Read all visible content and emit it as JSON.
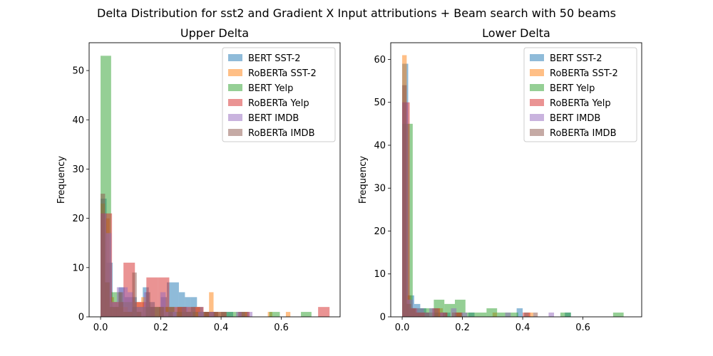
{
  "figure": {
    "title": "Delta Distribution for sst2 and Gradient X Input attributions + Beam search with 50 beams"
  },
  "chart_data": [
    {
      "type": "bar",
      "title": "Upper Delta",
      "xlabel": "",
      "ylabel": "Frequency",
      "xlim": [
        -0.038,
        0.795
      ],
      "ylim": [
        0,
        55.65
      ],
      "xticks": [
        "0.0",
        "0.2",
        "0.4",
        "0.6"
      ],
      "yticks": [
        "0",
        "10",
        "20",
        "30",
        "40",
        "50"
      ],
      "legend_position": "upper right",
      "series": [
        {
          "name": "BERT SST-2",
          "color": "#1f77b4",
          "bins": [
            [
              0.0,
              0.02,
              24
            ],
            [
              0.02,
              0.04,
              11
            ],
            [
              0.04,
              0.06,
              2
            ],
            [
              0.06,
              0.08,
              6
            ],
            [
              0.08,
              0.1,
              4
            ],
            [
              0.1,
              0.12,
              4
            ],
            [
              0.12,
              0.14,
              1
            ],
            [
              0.14,
              0.16,
              6
            ],
            [
              0.16,
              0.18,
              3
            ],
            [
              0.18,
              0.2,
              2
            ],
            [
              0.2,
              0.22,
              4
            ],
            [
              0.22,
              0.24,
              7
            ],
            [
              0.24,
              0.26,
              7
            ],
            [
              0.26,
              0.28,
              5
            ],
            [
              0.28,
              0.3,
              4
            ],
            [
              0.3,
              0.32,
              4
            ],
            [
              0.32,
              0.34,
              2
            ],
            [
              0.34,
              0.36,
              1
            ],
            [
              0.36,
              0.38,
              1
            ],
            [
              0.4,
              0.42,
              1
            ],
            [
              0.42,
              0.44,
              1
            ],
            [
              0.46,
              0.48,
              1
            ]
          ]
        },
        {
          "name": "RoBERTa SST-2",
          "color": "#ff7f0e",
          "bins": [
            [
              0.0,
              0.015,
              23
            ],
            [
              0.015,
              0.03,
              20
            ],
            [
              0.03,
              0.045,
              4
            ],
            [
              0.045,
              0.06,
              3
            ],
            [
              0.06,
              0.075,
              2
            ],
            [
              0.075,
              0.09,
              2
            ],
            [
              0.09,
              0.105,
              1
            ],
            [
              0.12,
              0.135,
              3
            ],
            [
              0.135,
              0.15,
              4
            ],
            [
              0.165,
              0.18,
              2
            ],
            [
              0.195,
              0.21,
              2
            ],
            [
              0.21,
              0.225,
              2
            ],
            [
              0.255,
              0.27,
              2
            ],
            [
              0.27,
              0.285,
              2
            ],
            [
              0.285,
              0.3,
              1
            ],
            [
              0.315,
              0.33,
              2
            ],
            [
              0.345,
              0.36,
              1
            ],
            [
              0.36,
              0.375,
              5
            ],
            [
              0.375,
              0.39,
              1
            ],
            [
              0.48,
              0.495,
              1
            ],
            [
              0.555,
              0.57,
              1
            ],
            [
              0.615,
              0.63,
              1
            ]
          ]
        },
        {
          "name": "BERT Yelp",
          "color": "#2ca02c",
          "bins": [
            [
              0.0,
              0.035,
              53
            ],
            [
              0.035,
              0.07,
              5
            ],
            [
              0.07,
              0.105,
              3
            ],
            [
              0.105,
              0.14,
              2
            ],
            [
              0.14,
              0.175,
              2
            ],
            [
              0.175,
              0.21,
              2
            ],
            [
              0.21,
              0.245,
              2
            ],
            [
              0.245,
              0.28,
              1
            ],
            [
              0.28,
              0.315,
              1
            ],
            [
              0.315,
              0.35,
              1
            ],
            [
              0.35,
              0.385,
              1
            ],
            [
              0.385,
              0.42,
              1
            ],
            [
              0.42,
              0.455,
              1
            ],
            [
              0.455,
              0.49,
              1
            ],
            [
              0.56,
              0.595,
              1
            ],
            [
              0.665,
              0.7,
              1
            ]
          ]
        },
        {
          "name": "RoBERTa Yelp",
          "color": "#d62728",
          "bins": [
            [
              0.0,
              0.038,
              21
            ],
            [
              0.038,
              0.076,
              3
            ],
            [
              0.076,
              0.114,
              11
            ],
            [
              0.114,
              0.152,
              3
            ],
            [
              0.152,
              0.19,
              8
            ],
            [
              0.19,
              0.228,
              8
            ],
            [
              0.228,
              0.266,
              2
            ],
            [
              0.266,
              0.304,
              2
            ],
            [
              0.304,
              0.342,
              2
            ],
            [
              0.342,
              0.38,
              1
            ],
            [
              0.38,
              0.418,
              1
            ],
            [
              0.456,
              0.494,
              1
            ],
            [
              0.722,
              0.76,
              2
            ]
          ]
        },
        {
          "name": "BERT IMDB",
          "color": "#9467bd",
          "bins": [
            [
              0.0,
              0.018,
              21
            ],
            [
              0.018,
              0.036,
              17
            ],
            [
              0.036,
              0.054,
              3
            ],
            [
              0.054,
              0.072,
              6
            ],
            [
              0.072,
              0.09,
              6
            ],
            [
              0.09,
              0.108,
              5
            ],
            [
              0.108,
              0.126,
              2
            ],
            [
              0.126,
              0.144,
              2
            ],
            [
              0.144,
              0.162,
              5
            ],
            [
              0.162,
              0.18,
              2
            ],
            [
              0.198,
              0.216,
              5
            ],
            [
              0.216,
              0.234,
              1
            ],
            [
              0.234,
              0.252,
              1
            ],
            [
              0.27,
              0.288,
              2
            ],
            [
              0.288,
              0.306,
              1
            ],
            [
              0.324,
              0.342,
              1
            ],
            [
              0.36,
              0.378,
              1
            ],
            [
              0.45,
              0.468,
              1
            ],
            [
              0.486,
              0.504,
              1
            ]
          ]
        },
        {
          "name": "RoBERTa IMDB",
          "color": "#8c564b",
          "bins": [
            [
              0.0,
              0.015,
              25
            ],
            [
              0.015,
              0.03,
              7
            ],
            [
              0.03,
              0.045,
              2
            ],
            [
              0.045,
              0.06,
              2
            ],
            [
              0.06,
              0.075,
              5
            ],
            [
              0.075,
              0.09,
              1
            ],
            [
              0.09,
              0.105,
              1
            ],
            [
              0.105,
              0.12,
              9
            ],
            [
              0.12,
              0.135,
              1
            ],
            [
              0.15,
              0.165,
              5
            ],
            [
              0.165,
              0.18,
              2
            ],
            [
              0.195,
              0.21,
              2
            ],
            [
              0.225,
              0.24,
              1
            ],
            [
              0.255,
              0.27,
              2
            ],
            [
              0.27,
              0.285,
              2
            ],
            [
              0.285,
              0.3,
              1
            ],
            [
              0.3,
              0.315,
              2
            ],
            [
              0.345,
              0.36,
              1
            ],
            [
              0.375,
              0.39,
              1
            ]
          ]
        }
      ]
    },
    {
      "type": "bar",
      "title": "Lower Delta",
      "xlabel": "",
      "ylabel": "Frequency",
      "xlim": [
        -0.038,
        0.795
      ],
      "ylim": [
        0,
        63.9
      ],
      "xticks": [
        "0.0",
        "0.2",
        "0.4",
        "0.6"
      ],
      "yticks": [
        "0",
        "10",
        "20",
        "30",
        "40",
        "50",
        "60"
      ],
      "legend_position": "upper right",
      "series": [
        {
          "name": "BERT SST-2",
          "color": "#1f77b4",
          "bins": [
            [
              0.0,
              0.02,
              59
            ],
            [
              0.02,
              0.04,
              5
            ],
            [
              0.04,
              0.06,
              3
            ],
            [
              0.06,
              0.08,
              2
            ],
            [
              0.08,
              0.1,
              1
            ],
            [
              0.1,
              0.12,
              1
            ],
            [
              0.12,
              0.14,
              1
            ],
            [
              0.14,
              0.16,
              1
            ],
            [
              0.18,
              0.2,
              1
            ],
            [
              0.22,
              0.24,
              1
            ],
            [
              0.38,
              0.4,
              2
            ],
            [
              0.54,
              0.56,
              1
            ]
          ]
        },
        {
          "name": "RoBERTa SST-2",
          "color": "#ff7f0e",
          "bins": [
            [
              0.0,
              0.015,
              61
            ],
            [
              0.015,
              0.03,
              5
            ],
            [
              0.03,
              0.045,
              2
            ],
            [
              0.045,
              0.06,
              1
            ],
            [
              0.06,
              0.075,
              1
            ],
            [
              0.09,
              0.105,
              1
            ],
            [
              0.12,
              0.135,
              2
            ],
            [
              0.18,
              0.195,
              1
            ],
            [
              0.3,
              0.315,
              1
            ],
            [
              0.42,
              0.435,
              1
            ]
          ]
        },
        {
          "name": "BERT Yelp",
          "color": "#2ca02c",
          "bins": [
            [
              0.0,
              0.035,
              45
            ],
            [
              0.035,
              0.07,
              2
            ],
            [
              0.07,
              0.105,
              2
            ],
            [
              0.105,
              0.14,
              4
            ],
            [
              0.14,
              0.175,
              3
            ],
            [
              0.175,
              0.21,
              4
            ],
            [
              0.21,
              0.245,
              1
            ],
            [
              0.245,
              0.28,
              1
            ],
            [
              0.28,
              0.315,
              2
            ],
            [
              0.315,
              0.35,
              1
            ],
            [
              0.35,
              0.385,
              1
            ],
            [
              0.525,
              0.56,
              1
            ],
            [
              0.7,
              0.735,
              1
            ]
          ]
        },
        {
          "name": "RoBERTa Yelp",
          "color": "#d62728",
          "bins": [
            [
              0.0,
              0.025,
              50
            ],
            [
              0.025,
              0.05,
              2
            ],
            [
              0.05,
              0.075,
              1
            ],
            [
              0.1,
              0.125,
              2
            ],
            [
              0.125,
              0.15,
              1
            ],
            [
              0.175,
              0.2,
              1
            ],
            [
              0.4,
              0.425,
              1
            ]
          ]
        },
        {
          "name": "BERT IMDB",
          "color": "#9467bd",
          "bins": [
            [
              0.0,
              0.018,
              50
            ],
            [
              0.018,
              0.036,
              4
            ],
            [
              0.036,
              0.054,
              2
            ],
            [
              0.054,
              0.072,
              2
            ],
            [
              0.072,
              0.09,
              1
            ],
            [
              0.09,
              0.108,
              2
            ],
            [
              0.126,
              0.144,
              1
            ],
            [
              0.162,
              0.18,
              2
            ],
            [
              0.198,
              0.216,
              1
            ],
            [
              0.342,
              0.36,
              1
            ],
            [
              0.486,
              0.504,
              1
            ]
          ]
        },
        {
          "name": "RoBERTa IMDB",
          "color": "#8c564b",
          "bins": [
            [
              0.0,
              0.015,
              54
            ],
            [
              0.015,
              0.03,
              3
            ],
            [
              0.03,
              0.045,
              2
            ],
            [
              0.045,
              0.06,
              1
            ],
            [
              0.06,
              0.075,
              1
            ],
            [
              0.075,
              0.09,
              1
            ],
            [
              0.105,
              0.12,
              2
            ],
            [
              0.135,
              0.15,
              1
            ],
            [
              0.165,
              0.18,
              1
            ],
            [
              0.405,
              0.42,
              1
            ],
            [
              0.435,
              0.45,
              1
            ]
          ]
        }
      ]
    }
  ]
}
